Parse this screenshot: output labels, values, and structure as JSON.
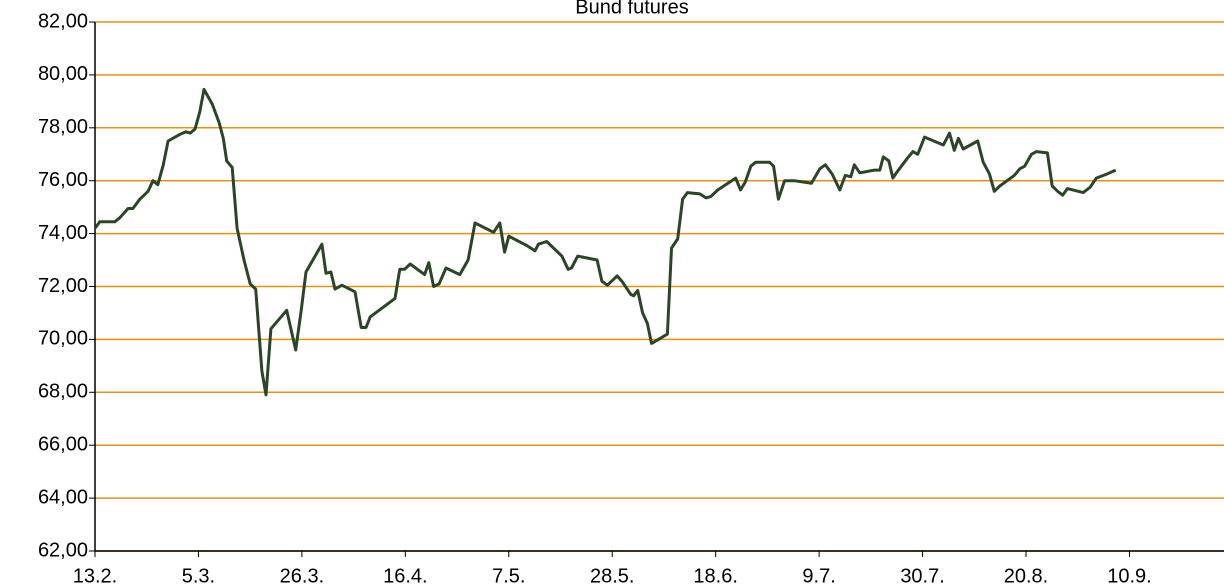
{
  "chart_data": {
    "type": "line",
    "title": "Bund futures",
    "x": [
      0,
      0.7,
      2.9,
      3.6,
      4.8,
      5.5,
      6.5,
      7.7,
      8.4,
      9.1,
      9.9,
      10.6,
      12.3,
      13.2,
      13.8,
      14.5,
      15.2,
      15.8,
      17.0,
      18.0,
      18.6,
      19.1,
      19.9,
      20.6,
      21.6,
      22.5,
      23.3,
      24.2,
      24.8,
      25.5,
      27.8,
      29.1,
      29.9,
      30.6,
      32.9,
      33.5,
      34.2,
      34.8,
      35.8,
      37.7,
      38.6,
      39.3,
      39.9,
      43.5,
      44.2,
      44.9,
      45.7,
      47.8,
      48.4,
      49.1,
      49.9,
      50.9,
      52.9,
      54.1,
      55.1,
      57.8,
      58.7,
      59.4,
      60.0,
      62.6,
      63.8,
      64.3,
      65.5,
      67.7,
      68.6,
      69.1,
      70.0,
      72.8,
      73.5,
      74.3,
      75.7,
      76.4,
      77.7,
      78.1,
      78.7,
      79.4,
      80.1,
      80.7,
      81.7,
      83.0,
      83.6,
      84.5,
      85.2,
      85.9,
      87.7,
      88.6,
      89.3,
      90.3,
      92.9,
      93.6,
      94.3,
      95.1,
      95.8,
      97.8,
      98.4,
      99.1,
      100.0,
      101.4,
      103.9,
      105.1,
      105.9,
      106.9,
      108.0,
      108.8,
      109.6,
      110.1,
      110.9,
      113.0,
      113.8,
      114.3,
      115.1,
      115.7,
      116.2,
      117.8,
      118.6,
      119.3,
      120.3,
      123.0,
      123.9,
      124.6,
      125.2,
      125.9,
      128.0,
      128.8,
      129.7,
      130.4,
      131.2,
      133.3,
      134.1,
      134.8,
      135.8,
      136.5,
      138.1,
      138.8,
      139.6,
      140.3,
      141.0,
      143.3,
      144.3,
      145.2,
      146.7,
      148.0
    ],
    "series": [
      {
        "name": "Bund futures",
        "color": "#2b4527",
        "values": [
          74.2,
          74.45,
          74.45,
          74.6,
          74.95,
          74.95,
          75.3,
          75.6,
          76.0,
          75.85,
          76.6,
          77.5,
          77.75,
          77.85,
          77.8,
          77.95,
          78.6,
          79.45,
          78.9,
          78.2,
          77.6,
          76.75,
          76.5,
          74.2,
          73.0,
          72.1,
          71.9,
          68.8,
          67.9,
          70.4,
          71.1,
          69.6,
          71.1,
          72.55,
          73.6,
          72.5,
          72.55,
          71.9,
          72.05,
          71.8,
          70.45,
          70.45,
          70.85,
          71.55,
          72.65,
          72.65,
          72.85,
          72.45,
          72.9,
          72.0,
          72.1,
          72.7,
          72.45,
          73.0,
          74.4,
          74.05,
          74.4,
          73.3,
          73.9,
          73.55,
          73.35,
          73.6,
          73.7,
          73.15,
          72.65,
          72.7,
          73.15,
          73.0,
          72.2,
          72.05,
          72.4,
          72.2,
          71.7,
          71.65,
          71.85,
          71.0,
          70.6,
          69.85,
          70.0,
          70.2,
          73.45,
          73.8,
          75.3,
          75.55,
          75.5,
          75.35,
          75.4,
          75.65,
          76.1,
          75.65,
          75.95,
          76.55,
          76.7,
          76.7,
          76.55,
          75.3,
          76.0,
          76.0,
          75.9,
          76.45,
          76.6,
          76.25,
          75.65,
          76.2,
          76.15,
          76.6,
          76.3,
          76.4,
          76.4,
          76.9,
          76.75,
          76.1,
          76.3,
          76.85,
          77.1,
          77.0,
          77.65,
          77.35,
          77.8,
          77.15,
          77.6,
          77.2,
          77.5,
          76.7,
          76.25,
          75.6,
          75.8,
          76.2,
          76.45,
          76.55,
          77.0,
          77.1,
          77.05,
          75.8,
          75.6,
          75.45,
          75.7,
          75.55,
          75.75,
          76.1,
          76.25,
          76.4
        ]
      }
    ],
    "xlim": [
      0,
      164
    ],
    "xticks": [
      {
        "value": 0,
        "label": "13.2."
      },
      {
        "value": 15,
        "label": "5.3."
      },
      {
        "value": 30,
        "label": "26.3."
      },
      {
        "value": 45,
        "label": "16.4."
      },
      {
        "value": 60,
        "label": "7.5."
      },
      {
        "value": 75,
        "label": "28.5."
      },
      {
        "value": 90,
        "label": "18.6."
      },
      {
        "value": 105,
        "label": "9.7."
      },
      {
        "value": 120,
        "label": "30.7."
      },
      {
        "value": 135,
        "label": "20.8."
      },
      {
        "value": 150,
        "label": "10.9."
      }
    ],
    "ylim": [
      62,
      82
    ],
    "yticks": [
      {
        "value": 62,
        "label": "62,00"
      },
      {
        "value": 64,
        "label": "64,00"
      },
      {
        "value": 66,
        "label": "66,00"
      },
      {
        "value": 68,
        "label": "68,00"
      },
      {
        "value": 70,
        "label": "70,00"
      },
      {
        "value": 72,
        "label": "72,00"
      },
      {
        "value": 74,
        "label": "74,00"
      },
      {
        "value": 76,
        "label": "76,00"
      },
      {
        "value": 78,
        "label": "78,00"
      },
      {
        "value": 80,
        "label": "80,00"
      },
      {
        "value": 82,
        "label": "82,00"
      }
    ],
    "grid": true,
    "grid_color": "#e8900f"
  }
}
